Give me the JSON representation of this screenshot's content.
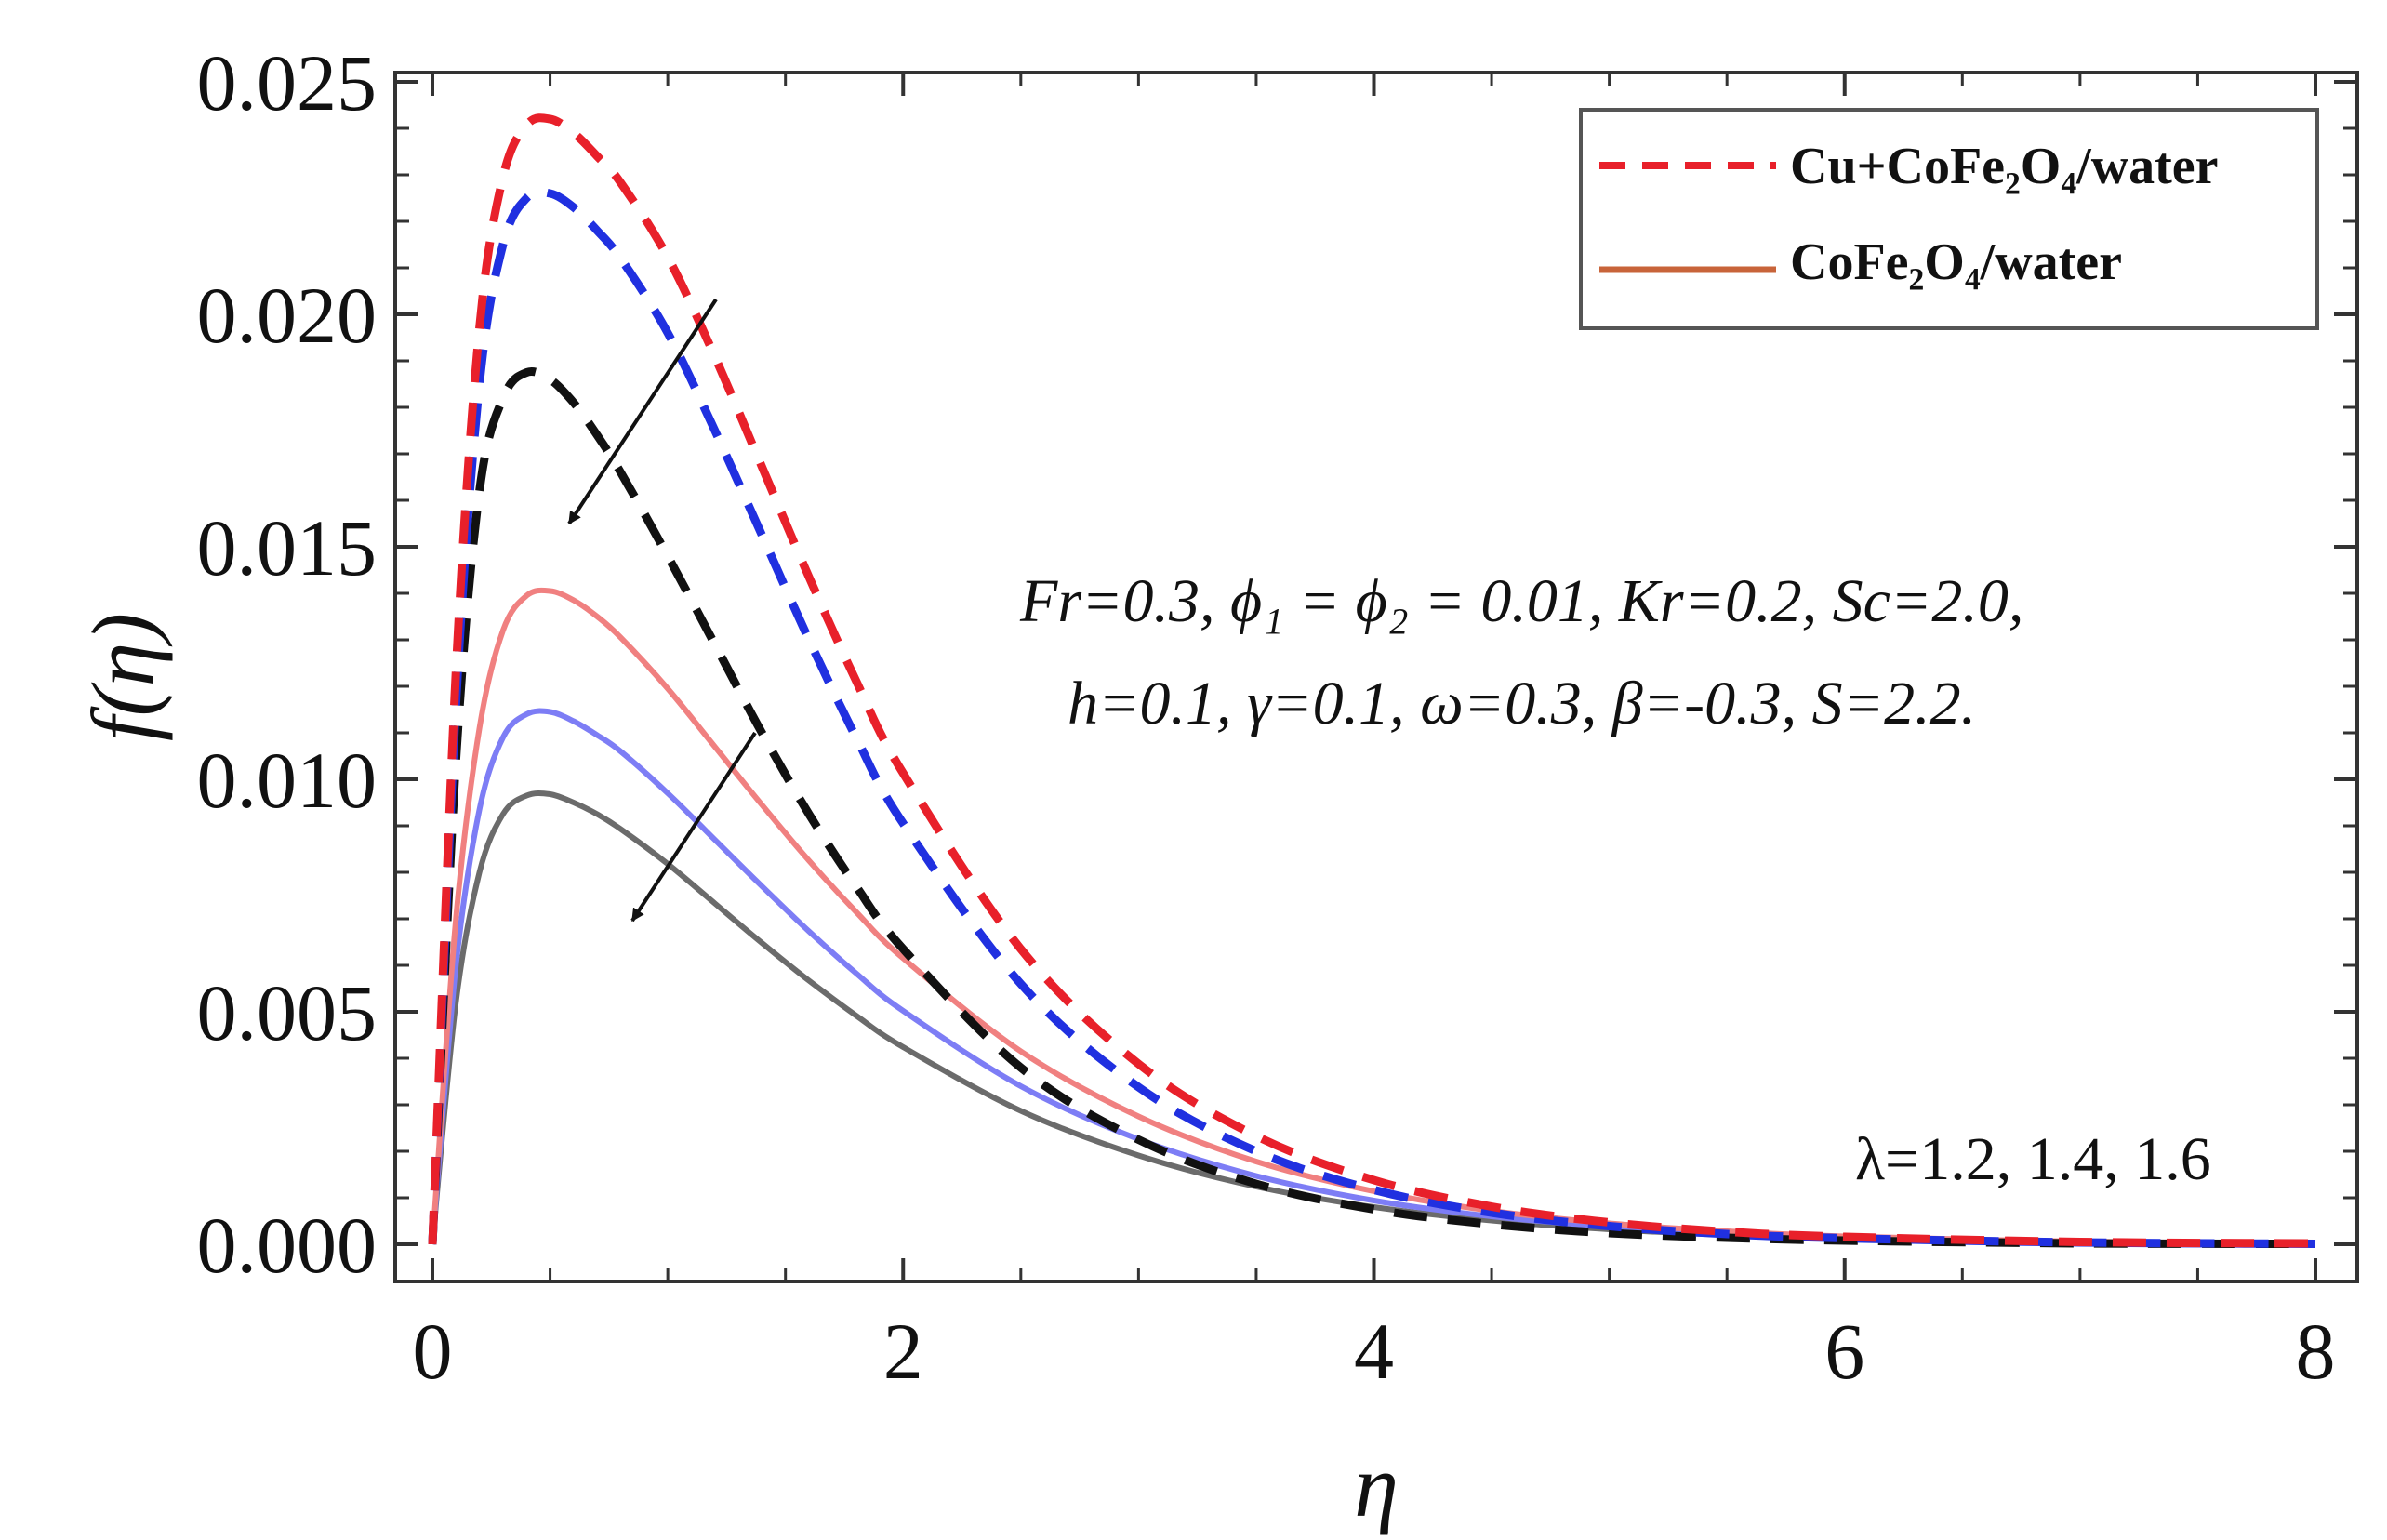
{
  "chart_data": {
    "type": "line",
    "xlabel": "η",
    "ylabel": "f(η)",
    "xlim": [
      0,
      8
    ],
    "ylim": [
      0,
      0.025
    ],
    "xticks": [
      "0",
      "2",
      "4",
      "6",
      "8"
    ],
    "yticks": [
      "0.000",
      "0.005",
      "0.010",
      "0.015",
      "0.020",
      "0.025"
    ],
    "grid": false,
    "legend_position": "top-right",
    "legend": [
      {
        "label": "Cu+CoFe₂O₄/water",
        "style": "dashed",
        "color": "#e8202a"
      },
      {
        "label": "CoFe₂O₄/water",
        "style": "solid",
        "color": "#c8643a"
      }
    ],
    "annotations": {
      "params_line1": "Fr=0.3, ϕ₁ = ϕ₂ = 0.01, Kr=0.2, Sc=2.0,",
      "params_line2": "h=0.1, γ=0.1, ω=0.3, β=-0.3, S=2.2.",
      "lambda_label": "λ=1.2, 1.4, 1.6"
    },
    "x": [
      0.0,
      0.1,
      0.2,
      0.3,
      0.4,
      0.5,
      0.6,
      0.7,
      0.8,
      1.0,
      1.2,
      1.4,
      1.6,
      1.8,
      2.0,
      2.5,
      3.0,
      3.5,
      4.0,
      4.5,
      5.0,
      5.5,
      6.0,
      7.0,
      8.0
    ],
    "series": [
      {
        "name": "Cu+CoFe₂O₄/water, λ=1.2",
        "style": "dashed",
        "color": "#e8202a",
        "values": [
          0.0,
          0.01232,
          0.01971,
          0.02295,
          0.02407,
          0.0242,
          0.0239,
          0.0234,
          0.02283,
          0.02123,
          0.01909,
          0.01672,
          0.01435,
          0.01212,
          0.01013,
          0.00635,
          0.00388,
          0.00233,
          0.00138,
          0.00081,
          0.00047,
          0.00027,
          0.00016,
          5e-05,
          2e-05
        ]
      },
      {
        "name": "Cu+CoFe₂O₄/water, λ=1.4",
        "style": "dashed",
        "color": "#2030e0",
        "values": [
          0.0,
          0.0116,
          0.0185,
          0.0215,
          0.0225,
          0.0226,
          0.0223,
          0.0218,
          0.0212,
          0.0196,
          0.0175,
          0.01525,
          0.013,
          0.0109,
          0.00905,
          0.0056,
          0.00338,
          0.002,
          0.00117,
          0.00068,
          0.00039,
          0.00022,
          0.00013,
          4e-05,
          1e-05
        ]
      },
      {
        "name": "Cu+CoFe₂O₄/water, λ=1.6",
        "style": "dashed",
        "color": "#111111",
        "values": [
          0.0,
          0.0104,
          0.0162,
          0.0182,
          0.01875,
          0.0186,
          0.0181,
          0.0174,
          0.0166,
          0.0148,
          0.0129,
          0.011,
          0.00925,
          0.0077,
          0.00635,
          0.0038,
          0.00225,
          0.0013,
          0.00075,
          0.00043,
          0.00024,
          0.00014,
          8e-05,
          2e-05,
          1e-05
        ]
      },
      {
        "name": "CoFe₂O₄/water, λ=1.2",
        "style": "solid",
        "color": "#f08080",
        "values": [
          0.0,
          0.007,
          0.0111,
          0.0132,
          0.01395,
          0.01405,
          0.01385,
          0.0135,
          0.01305,
          0.01195,
          0.0107,
          0.00945,
          0.00825,
          0.00715,
          0.00615,
          0.00415,
          0.00275,
          0.00178,
          0.00114,
          0.00072,
          0.00045,
          0.00028,
          0.00017,
          6e-05,
          2e-05
        ]
      },
      {
        "name": "CoFe₂O₄/water, λ=1.4",
        "style": "solid",
        "color": "#7d7df5",
        "values": [
          0.0,
          0.006,
          0.00935,
          0.0109,
          0.0114,
          0.01145,
          0.01125,
          0.01095,
          0.0106,
          0.0097,
          0.0087,
          0.0077,
          0.00673,
          0.00583,
          0.00502,
          0.0034,
          0.00226,
          0.00147,
          0.00094,
          0.0006,
          0.00038,
          0.00023,
          0.00014,
          5e-05,
          2e-05
        ]
      },
      {
        "name": "CoFe₂O₄/water, λ=1.6",
        "style": "solid",
        "color": "#6b6b6b",
        "values": [
          0.0,
          0.0052,
          0.008,
          0.00925,
          0.00965,
          0.00968,
          0.0095,
          0.00925,
          0.00893,
          0.00818,
          0.00733,
          0.00648,
          0.00567,
          0.00492,
          0.00424,
          0.00287,
          0.00191,
          0.00124,
          0.0008,
          0.00051,
          0.00032,
          0.0002,
          0.00012,
          4e-05,
          1e-05
        ]
      }
    ]
  }
}
